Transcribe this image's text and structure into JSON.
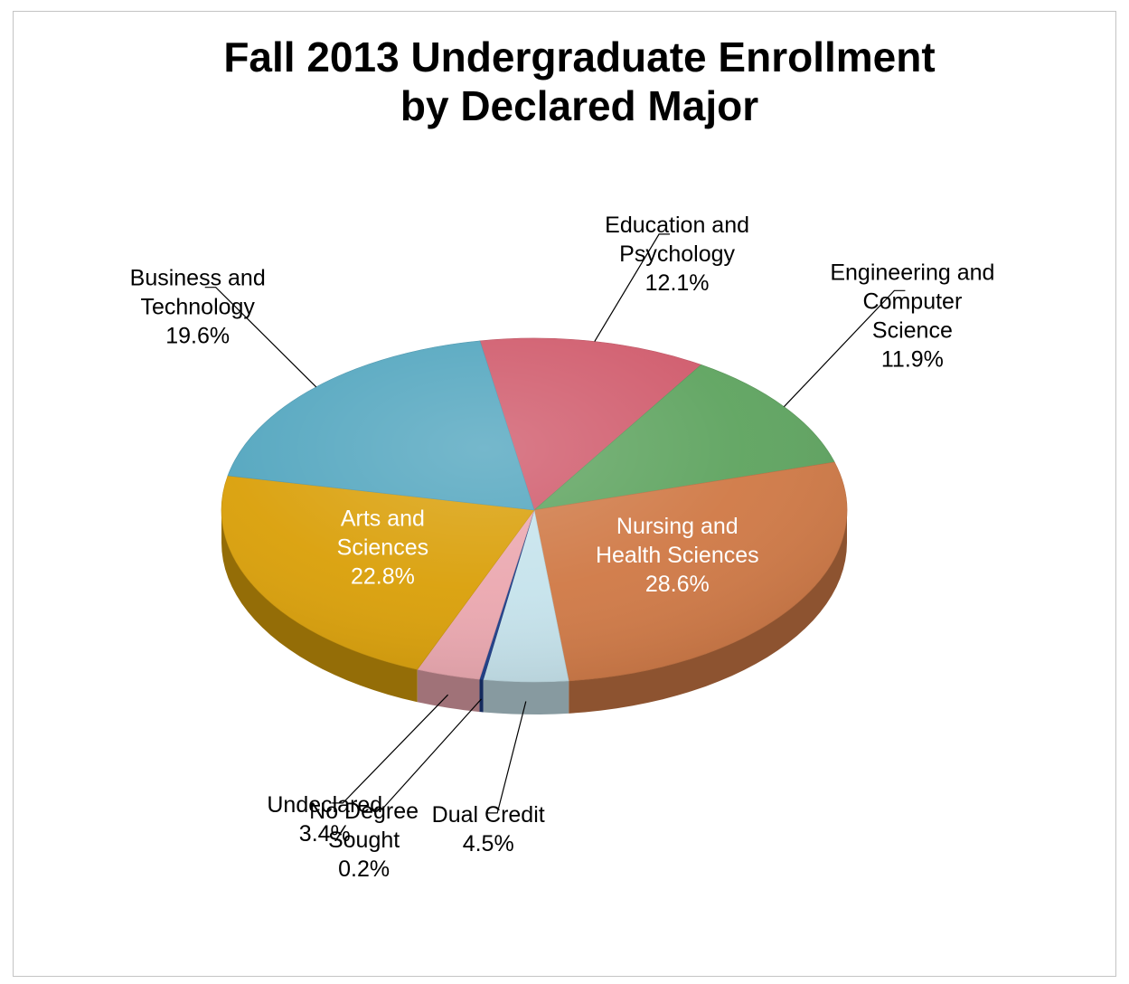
{
  "chart_data": {
    "type": "pie",
    "title_lines": [
      "Fall 2013 Undergraduate Enrollment",
      "by Declared Major"
    ],
    "slices": [
      {
        "name": "Education and Psychology",
        "label_lines": [
          "Education and",
          "Psychology"
        ],
        "value": 12.1,
        "pct_label": "12.1%",
        "color": "#d05b6c",
        "label_color": "#000000"
      },
      {
        "name": "Engineering and Computer Science",
        "label_lines": [
          "Engineering and",
          "Computer",
          "Science"
        ],
        "value": 11.9,
        "pct_label": "11.9%",
        "color": "#5fa460",
        "label_color": "#000000"
      },
      {
        "name": "Nursing and Health Sciences",
        "label_lines": [
          "Nursing and",
          "Health Sciences"
        ],
        "value": 28.6,
        "pct_label": "28.6%",
        "color": "#d07a47",
        "label_color": "#ffffff"
      },
      {
        "name": "Dual Credit",
        "label_lines": [
          "Dual Credit"
        ],
        "value": 4.5,
        "pct_label": "4.5%",
        "color": "#c6e3ec",
        "label_color": "#000000"
      },
      {
        "name": "No Degree Sought",
        "label_lines": [
          "No Degree",
          "Sought"
        ],
        "value": 0.2,
        "pct_label": "0.2%",
        "color": "#1f3f8a",
        "label_color": "#000000"
      },
      {
        "name": "Undeclared",
        "label_lines": [
          "Undeclared"
        ],
        "value": 3.4,
        "pct_label": "3.4%",
        "color": "#eba8b0",
        "label_color": "#000000"
      },
      {
        "name": "Arts and Sciences",
        "label_lines": [
          "Arts and",
          "Sciences"
        ],
        "value": 22.8,
        "pct_label": "22.8%",
        "color": "#daa00a",
        "label_color": "#ffffff"
      },
      {
        "name": "Business and Technology",
        "label_lines": [
          "Business and",
          "Technology"
        ],
        "value": 19.6,
        "pct_label": "19.6%",
        "color": "#53a6bf",
        "label_color": "#000000"
      }
    ],
    "legend": "none",
    "style": "3d-pie"
  }
}
